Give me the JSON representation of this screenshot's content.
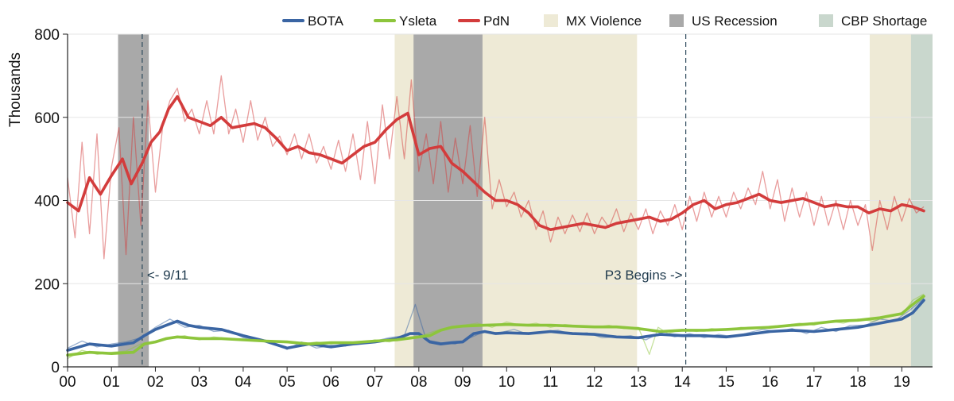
{
  "chart_data": {
    "type": "line",
    "ylabel": "Thousands",
    "xlabel": "",
    "ylim": [
      0,
      800
    ],
    "xlim": [
      0,
      19.7
    ],
    "yticks": [
      0,
      200,
      400,
      600,
      800
    ],
    "x_tick_labels": [
      "00",
      "01",
      "02",
      "03",
      "04",
      "05",
      "06",
      "07",
      "08",
      "09",
      "10",
      "11",
      "12",
      "13",
      "14",
      "15",
      "16",
      "17",
      "18",
      "19"
    ],
    "grid": "horizontal",
    "legend_position": "top",
    "legend": [
      "BOTA",
      "Ysleta",
      "PdN",
      "MX Violence",
      "US Recession",
      "CBP Shortage"
    ],
    "colors": {
      "BOTA": "#3a65a3",
      "Ysleta": "#8dc53c",
      "PdN": "#d33c3c",
      "MX Violence": "#eeead6",
      "US Recession": "#a9a9a9",
      "CBP Shortage": "#c9d7cd"
    },
    "shaded_periods": [
      {
        "name": "MX Violence",
        "start": 7.45,
        "end": 12.97
      },
      {
        "name": "MX Violence",
        "start": 18.27,
        "end": 19.25
      },
      {
        "name": "US Recession",
        "start": 1.15,
        "end": 1.85
      },
      {
        "name": "US Recession",
        "start": 7.88,
        "end": 9.45
      },
      {
        "name": "CBP Shortage",
        "start": 19.21,
        "end": 19.7
      }
    ],
    "annotations": [
      {
        "text": "<- 9/11",
        "x": 1.7
      },
      {
        "text": "P3 Begins ->",
        "x": 14.08
      }
    ],
    "series": [
      {
        "name": "PdN",
        "smoothed": {
          "x": [
            0,
            0.25,
            0.5,
            0.75,
            1.0,
            1.25,
            1.45,
            1.7,
            1.9,
            2.1,
            2.3,
            2.5,
            2.75,
            3.0,
            3.25,
            3.5,
            3.75,
            4.0,
            4.25,
            4.5,
            4.75,
            5.0,
            5.25,
            5.5,
            5.75,
            6.0,
            6.25,
            6.5,
            6.75,
            7.0,
            7.25,
            7.5,
            7.75,
            8.0,
            8.25,
            8.5,
            8.75,
            9.0,
            9.25,
            9.5,
            9.75,
            10.0,
            10.25,
            10.5,
            10.75,
            11.0,
            11.25,
            11.5,
            11.75,
            12.0,
            12.25,
            12.5,
            12.75,
            13.0,
            13.25,
            13.5,
            13.75,
            14.0,
            14.25,
            14.5,
            14.75,
            15.0,
            15.25,
            15.5,
            15.75,
            16.0,
            16.25,
            16.5,
            16.75,
            17.0,
            17.25,
            17.5,
            17.75,
            18.0,
            18.25,
            18.5,
            18.75,
            19.0,
            19.25,
            19.5
          ],
          "y": [
            395,
            375,
            455,
            415,
            460,
            500,
            440,
            490,
            540,
            565,
            620,
            650,
            600,
            590,
            580,
            600,
            575,
            580,
            585,
            575,
            550,
            520,
            530,
            515,
            510,
            500,
            490,
            510,
            530,
            540,
            570,
            595,
            610,
            510,
            525,
            530,
            490,
            470,
            445,
            420,
            400,
            400,
            390,
            370,
            340,
            330,
            335,
            340,
            345,
            340,
            335,
            345,
            350,
            355,
            360,
            350,
            355,
            370,
            390,
            400,
            380,
            390,
            395,
            405,
            415,
            400,
            395,
            400,
            405,
            395,
            385,
            390,
            385,
            385,
            370,
            380,
            375,
            390,
            385,
            375
          ]
        },
        "raw": {
          "x": [
            0,
            0.17,
            0.33,
            0.5,
            0.67,
            0.83,
            1.0,
            1.17,
            1.33,
            1.5,
            1.67,
            1.83,
            2.0,
            2.17,
            2.33,
            2.5,
            2.67,
            2.83,
            3.0,
            3.17,
            3.33,
            3.5,
            3.67,
            3.83,
            4.0,
            4.17,
            4.33,
            4.5,
            4.67,
            4.83,
            5.0,
            5.17,
            5.33,
            5.5,
            5.67,
            5.83,
            6.0,
            6.17,
            6.33,
            6.5,
            6.67,
            6.83,
            7.0,
            7.17,
            7.33,
            7.5,
            7.67,
            7.83,
            8.0,
            8.17,
            8.33,
            8.5,
            8.67,
            8.83,
            9.0,
            9.17,
            9.33,
            9.5,
            9.67,
            9.83,
            10.0,
            10.17,
            10.33,
            10.5,
            10.67,
            10.83,
            11.0,
            11.17,
            11.33,
            11.5,
            11.67,
            11.83,
            12.0,
            12.17,
            12.33,
            12.5,
            12.67,
            12.83,
            13.0,
            13.17,
            13.33,
            13.5,
            13.67,
            13.83,
            14.0,
            14.17,
            14.33,
            14.5,
            14.67,
            14.83,
            15.0,
            15.17,
            15.33,
            15.5,
            15.67,
            15.83,
            16.0,
            16.17,
            16.33,
            16.5,
            16.67,
            16.83,
            17.0,
            17.17,
            17.33,
            17.5,
            17.67,
            17.83,
            18.0,
            18.17,
            18.33,
            18.5,
            18.67,
            18.83,
            19.0,
            19.17,
            19.33,
            19.5
          ],
          "y": [
            455,
            310,
            540,
            320,
            560,
            260,
            480,
            575,
            270,
            600,
            340,
            640,
            420,
            580,
            640,
            670,
            590,
            620,
            560,
            640,
            560,
            700,
            560,
            620,
            540,
            640,
            545,
            600,
            530,
            555,
            510,
            560,
            500,
            560,
            490,
            530,
            475,
            545,
            470,
            560,
            450,
            590,
            440,
            630,
            500,
            650,
            500,
            690,
            470,
            560,
            440,
            590,
            420,
            550,
            440,
            580,
            410,
            600,
            380,
            450,
            385,
            420,
            360,
            400,
            330,
            375,
            300,
            360,
            320,
            365,
            325,
            370,
            320,
            360,
            335,
            380,
            325,
            370,
            330,
            380,
            320,
            375,
            340,
            390,
            330,
            410,
            350,
            420,
            360,
            410,
            360,
            420,
            380,
            430,
            390,
            470,
            380,
            450,
            350,
            430,
            360,
            420,
            340,
            410,
            340,
            400,
            330,
            400,
            340,
            390,
            280,
            400,
            330,
            410,
            350,
            405,
            370,
            385
          ]
        }
      },
      {
        "name": "BOTA",
        "smoothed": {
          "x": [
            0,
            0.5,
            1.0,
            1.5,
            1.75,
            2.0,
            2.25,
            2.5,
            2.75,
            3.0,
            3.5,
            4.0,
            4.5,
            5.0,
            5.5,
            6.0,
            6.5,
            7.0,
            7.5,
            7.8,
            8.0,
            8.25,
            8.5,
            8.75,
            9.0,
            9.25,
            9.5,
            9.75,
            10.0,
            10.5,
            11.0,
            11.5,
            12.0,
            12.5,
            13.0,
            13.5,
            14.0,
            14.5,
            15.0,
            15.5,
            16.0,
            16.5,
            17.0,
            17.5,
            18.0,
            18.5,
            19.0,
            19.25,
            19.5
          ],
          "y": [
            40,
            55,
            50,
            58,
            75,
            90,
            100,
            110,
            100,
            95,
            90,
            75,
            62,
            45,
            55,
            48,
            55,
            60,
            68,
            80,
            80,
            60,
            55,
            58,
            60,
            80,
            85,
            80,
            82,
            80,
            85,
            80,
            78,
            72,
            70,
            78,
            75,
            75,
            72,
            78,
            85,
            88,
            85,
            90,
            95,
            105,
            115,
            130,
            160
          ]
        },
        "raw": {
          "x": [
            0,
            0.33,
            0.67,
            1.0,
            1.33,
            1.67,
            2.0,
            2.33,
            2.67,
            3.0,
            3.33,
            3.67,
            4.0,
            4.33,
            4.67,
            5.0,
            5.33,
            5.67,
            6.0,
            6.33,
            6.67,
            7.0,
            7.33,
            7.67,
            7.92,
            8.17,
            8.5,
            8.83,
            9.17,
            9.5,
            9.83,
            10.17,
            10.5,
            10.83,
            11.17,
            11.5,
            11.83,
            12.17,
            12.5,
            12.83,
            13.17,
            13.5,
            13.83,
            14.17,
            14.5,
            14.83,
            15.17,
            15.5,
            15.83,
            16.17,
            16.5,
            16.83,
            17.17,
            17.5,
            17.83,
            18.17,
            18.5,
            18.83,
            19.17,
            19.5
          ],
          "y": [
            45,
            62,
            48,
            55,
            60,
            70,
            95,
            115,
            95,
            100,
            85,
            88,
            70,
            65,
            60,
            42,
            60,
            45,
            52,
            50,
            60,
            62,
            70,
            75,
            150,
            65,
            58,
            55,
            70,
            85,
            82,
            90,
            78,
            85,
            88,
            78,
            82,
            70,
            72,
            75,
            65,
            82,
            72,
            80,
            70,
            78,
            72,
            82,
            90,
            85,
            92,
            80,
            95,
            85,
            100,
            100,
            115,
            110,
            135,
            165
          ]
        }
      },
      {
        "name": "Ysleta",
        "smoothed": {
          "x": [
            0,
            0.5,
            1.0,
            1.5,
            1.75,
            2.0,
            2.25,
            2.5,
            2.75,
            3.0,
            3.5,
            4.0,
            4.5,
            5.0,
            5.5,
            6.0,
            6.5,
            7.0,
            7.5,
            8.0,
            8.25,
            8.5,
            8.75,
            9.0,
            9.5,
            10.0,
            10.5,
            11.0,
            11.5,
            12.0,
            12.5,
            13.0,
            13.5,
            14.0,
            14.5,
            15.0,
            15.5,
            16.0,
            16.5,
            17.0,
            17.5,
            18.0,
            18.5,
            19.0,
            19.25,
            19.5
          ],
          "y": [
            28,
            35,
            32,
            35,
            55,
            60,
            68,
            72,
            70,
            68,
            68,
            65,
            62,
            60,
            55,
            58,
            58,
            62,
            65,
            72,
            75,
            88,
            95,
            98,
            100,
            102,
            100,
            100,
            98,
            96,
            96,
            92,
            85,
            88,
            88,
            90,
            93,
            95,
            100,
            104,
            110,
            112,
            118,
            128,
            150,
            170
          ]
        },
        "raw": {
          "x": [
            0,
            0.33,
            0.67,
            1.0,
            1.33,
            1.67,
            2.0,
            2.33,
            2.67,
            3.0,
            3.33,
            3.67,
            4.0,
            4.33,
            4.67,
            5.0,
            5.33,
            5.67,
            6.0,
            6.33,
            6.67,
            7.0,
            7.33,
            7.67,
            8.0,
            8.33,
            8.67,
            9.0,
            9.33,
            9.67,
            10.0,
            10.33,
            10.67,
            11.0,
            11.33,
            11.67,
            12.0,
            12.33,
            12.67,
            13.0,
            13.25,
            13.45,
            13.67,
            14.0,
            14.33,
            14.67,
            15.0,
            15.33,
            15.67,
            16.0,
            16.33,
            16.67,
            17.0,
            17.33,
            17.67,
            18.0,
            18.33,
            18.67,
            19.0,
            19.25,
            19.5
          ],
          "y": [
            20,
            40,
            30,
            35,
            38,
            55,
            62,
            70,
            75,
            65,
            72,
            68,
            66,
            62,
            60,
            58,
            55,
            60,
            55,
            60,
            58,
            65,
            60,
            70,
            72,
            85,
            95,
            100,
            105,
            95,
            108,
            100,
            105,
            95,
            102,
            98,
            95,
            100,
            92,
            95,
            30,
            95,
            80,
            90,
            85,
            92,
            88,
            95,
            92,
            98,
            100,
            105,
            100,
            110,
            105,
            115,
            110,
            120,
            125,
            160,
            175
          ]
        }
      }
    ]
  }
}
